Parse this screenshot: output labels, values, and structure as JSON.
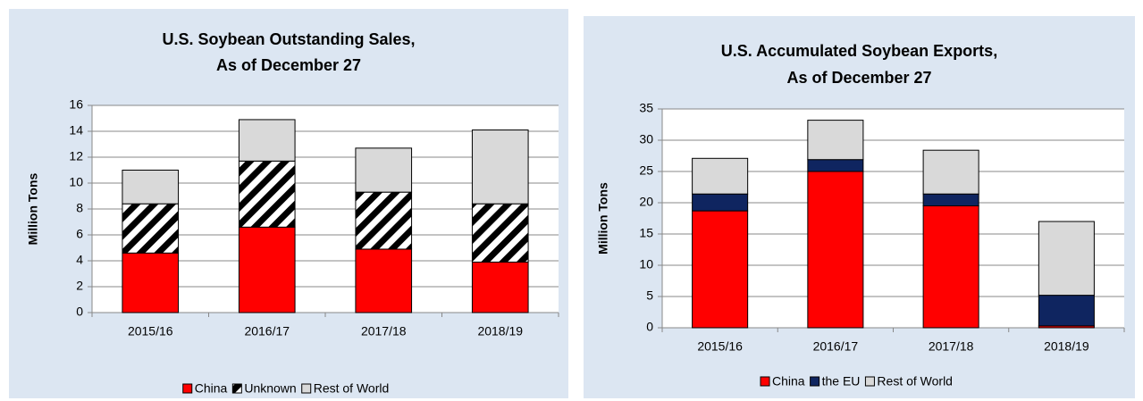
{
  "chart_data": [
    {
      "type": "stacked_bar",
      "title": [
        "U.S. Soybean Outstanding Sales,",
        "As of December 27"
      ],
      "y_label": "Million Tons",
      "categories": [
        "2015/16",
        "2016/17",
        "2017/18",
        "2018/19"
      ],
      "series": [
        {
          "name": "China",
          "color": "#ff0000",
          "values": [
            4.6,
            6.6,
            4.9,
            3.9
          ]
        },
        {
          "name": "Unknown",
          "color": "#000000",
          "pattern": "hatch",
          "values": [
            3.8,
            5.1,
            4.4,
            4.5
          ]
        },
        {
          "name": "Rest of World",
          "color": "#d9d9d9",
          "values": [
            2.6,
            3.2,
            3.4,
            5.7
          ]
        }
      ],
      "ylim": [
        0,
        16
      ],
      "yticks": [
        0,
        2,
        4,
        6,
        8,
        10,
        12,
        14,
        16
      ],
      "grid": true,
      "legend": "bottom"
    },
    {
      "type": "stacked_bar",
      "title": [
        "U.S. Accumulated Soybean Exports,",
        "As of December 27"
      ],
      "y_label": "Million Tons",
      "categories": [
        "2015/16",
        "2016/17",
        "2017/18",
        "2018/19"
      ],
      "series": [
        {
          "name": "China",
          "color": "#ff0000",
          "values": [
            18.7,
            25.0,
            19.5,
            0.3
          ]
        },
        {
          "name": "the EU",
          "color": "#0f2560",
          "values": [
            2.7,
            1.9,
            1.9,
            4.9
          ]
        },
        {
          "name": "Rest of World",
          "color": "#d9d9d9",
          "values": [
            5.7,
            6.3,
            7.0,
            11.8
          ]
        }
      ],
      "ylim": [
        0,
        35
      ],
      "yticks": [
        0,
        5,
        10,
        15,
        20,
        25,
        30,
        35
      ],
      "grid": true,
      "legend": "bottom"
    }
  ]
}
